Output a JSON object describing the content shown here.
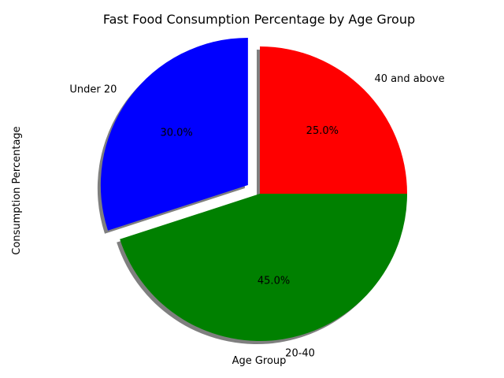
{
  "chart_data": {
    "type": "pie",
    "title": "Fast Food Consumption Percentage by Age Group",
    "xlabel": "Age Group",
    "ylabel": "Consumption Percentage",
    "categories": [
      "40 and above",
      "20-40",
      "Under 20"
    ],
    "values": [
      25.0,
      45.0,
      30.0
    ],
    "value_labels": [
      "25.0%",
      "45.0%",
      "30.0%"
    ],
    "colors": [
      "#ff0000",
      "#008000",
      "#0000ff"
    ],
    "exploded": [
      false,
      false,
      true
    ],
    "start_angle_deg": 90,
    "direction": "clockwise",
    "shadow": true
  }
}
